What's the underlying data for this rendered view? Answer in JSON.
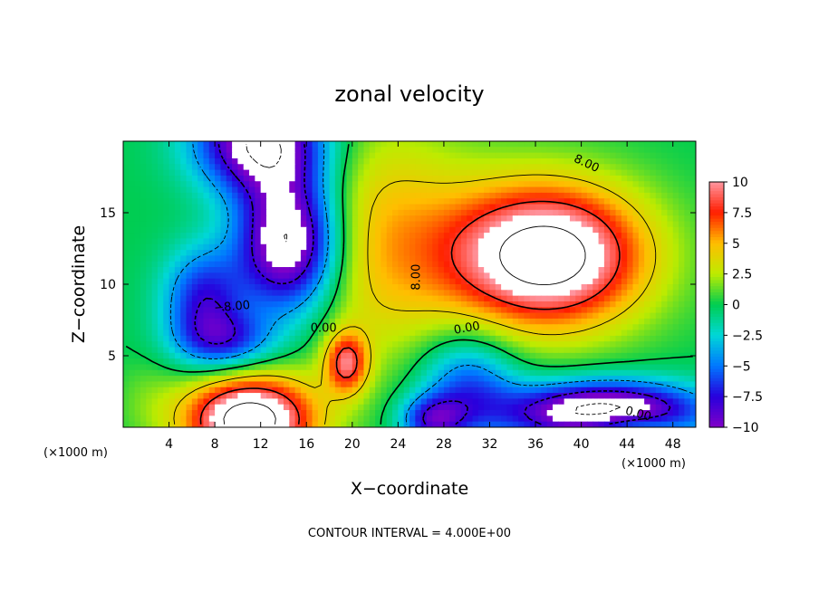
{
  "chart_data": {
    "type": "heatmap",
    "title": "zonal velocity",
    "xlabel": "X−coordinate",
    "ylabel": "Z−coordinate",
    "x_units": "(×1000 m)",
    "x_units_right": "(×1000 m)",
    "xlim": [
      0,
      50
    ],
    "ylim": [
      0,
      20
    ],
    "x_ticks": [
      4,
      8,
      12,
      16,
      20,
      24,
      28,
      32,
      36,
      40,
      44,
      48
    ],
    "y_ticks": [
      5,
      10,
      15
    ],
    "colorbar": {
      "ticks": [
        10,
        7.5,
        5,
        2.5,
        0,
        -2.5,
        -5,
        -7.5,
        -10
      ],
      "tick_labels": [
        "10",
        "7.5",
        "5",
        "2.5",
        "0",
        "−2.5",
        "−5",
        "−7.5",
        "−10"
      ],
      "range": [
        -10,
        10
      ]
    },
    "contour_interval": "CONTOUR INTERVAL = 4.000E+00",
    "contour_labels": [
      "8.00",
      "8.00",
      "−8.00",
      "0.00",
      "0.00",
      "0.00"
    ],
    "features": [
      {
        "x": 37,
        "z": 12,
        "value": 14,
        "sigma_x": 6.0,
        "sigma_z": 3.5
      },
      {
        "x": 22,
        "z": 13,
        "value": 5,
        "sigma_x": 6.0,
        "sigma_z": 6.0
      },
      {
        "x": 14.5,
        "z": 13,
        "value": -14,
        "sigma_x": 3.2,
        "sigma_z": 3.5
      },
      {
        "x": 12,
        "z": 20,
        "value": -12,
        "sigma_x": 4.0,
        "sigma_z": 2.5
      },
      {
        "x": 7,
        "z": 9,
        "value": -7,
        "sigma_x": 2.5,
        "sigma_z": 2.5
      },
      {
        "x": 9,
        "z": 6,
        "value": -6,
        "sigma_x": 3.0,
        "sigma_z": 1.5
      },
      {
        "x": 11,
        "z": 0.5,
        "value": 14,
        "sigma_x": 4.0,
        "sigma_z": 2.2
      },
      {
        "x": 19.5,
        "z": 4.5,
        "value": 8,
        "sigma_x": 1.3,
        "sigma_z": 1.5
      },
      {
        "x": 30,
        "z": 3,
        "value": -6,
        "sigma_x": 3.0,
        "sigma_z": 2.5
      },
      {
        "x": 42,
        "z": 1,
        "value": -14,
        "sigma_x": 6.0,
        "sigma_z": 1.5
      },
      {
        "x": 44,
        "z": 0,
        "value": 5,
        "sigma_x": 3.0,
        "sigma_z": 0.8
      },
      {
        "x": 27,
        "z": 0.5,
        "value": -7,
        "sigma_x": 2.0,
        "sigma_z": 1.2
      },
      {
        "x": 2,
        "z": 2,
        "value": 1,
        "sigma_x": 2.0,
        "sigma_z": 2.0
      }
    ]
  }
}
